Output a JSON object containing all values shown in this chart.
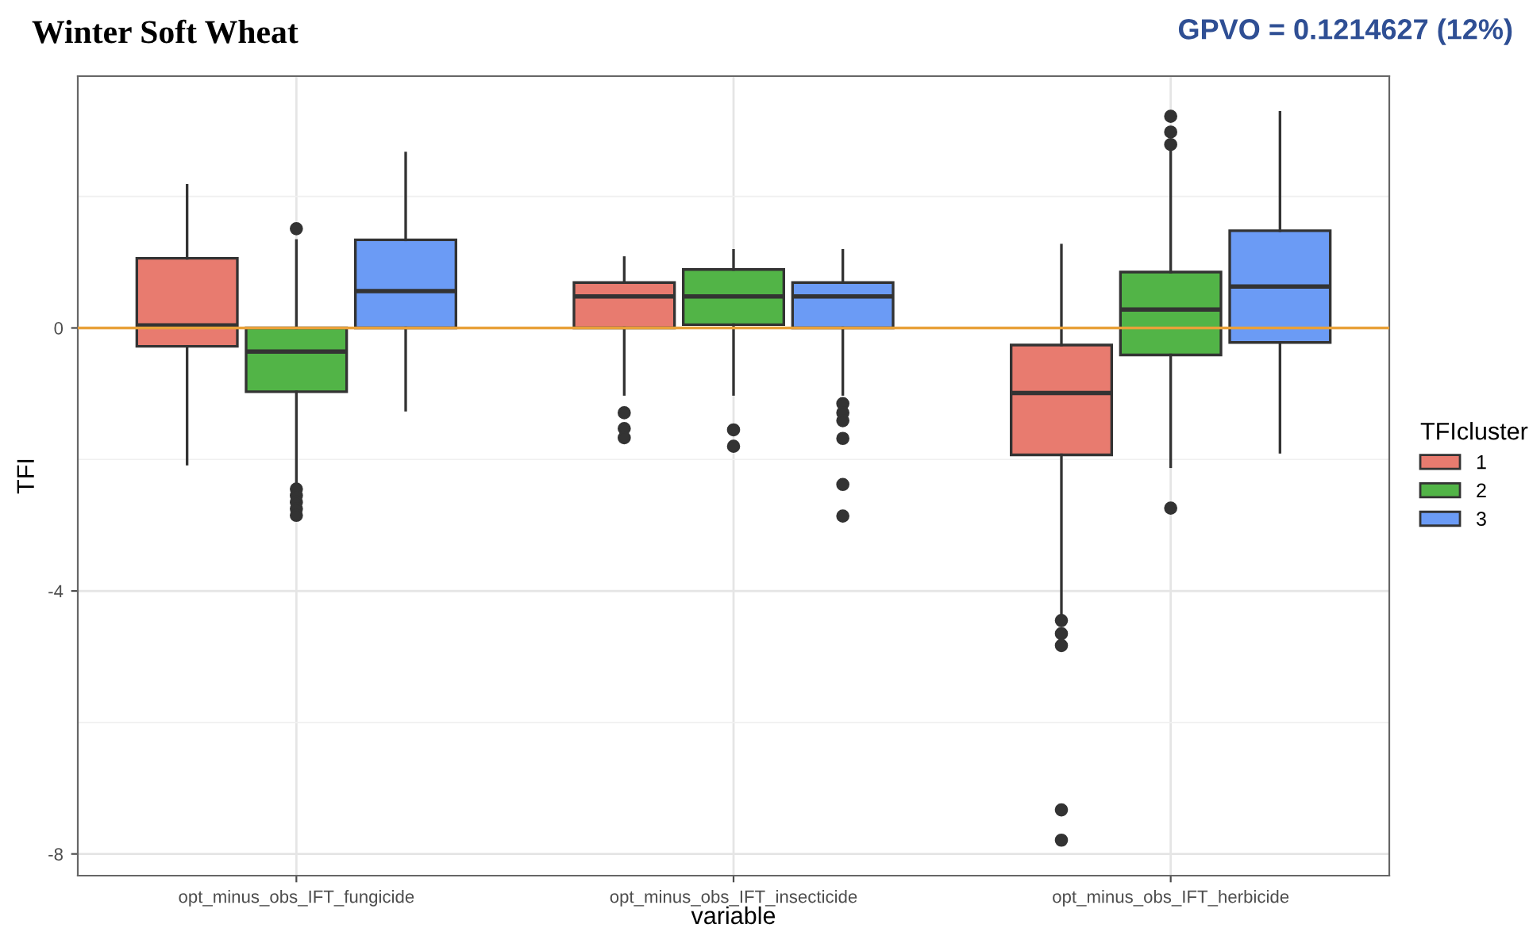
{
  "chart_data": {
    "type": "box",
    "title": "Winter Soft Wheat",
    "annotations": [
      "GPVO = 0.1214627 (12%)"
    ],
    "xlabel": "variable",
    "ylabel": "TFI",
    "legend_title": "TFIcluster",
    "categories": [
      "opt_minus_obs_IFT_fungicide",
      "opt_minus_obs_IFT_insecticide",
      "opt_minus_obs_IFT_herbicide"
    ],
    "series": [
      {
        "name": "1",
        "color": "#e87b6f",
        "boxes": [
          {
            "low": -2.07,
            "q1": -0.28,
            "median": 0.04,
            "q3": 1.06,
            "high": 2.17
          },
          {
            "low": -1.01,
            "q1": 0.0,
            "median": 0.48,
            "q3": 0.69,
            "high": 1.07,
            "outliers": [
              -1.29,
              -1.53,
              -1.67
            ]
          },
          {
            "low": -4.45,
            "q1": -1.93,
            "median": -0.99,
            "q3": -0.26,
            "high": 1.26,
            "outliers": [
              -4.45,
              -4.65,
              -4.83,
              -7.33,
              -7.79
            ]
          }
        ]
      },
      {
        "name": "2",
        "color": "#52b447",
        "boxes": [
          {
            "low": -2.42,
            "q1": -0.97,
            "median": -0.36,
            "q3": 0.0,
            "high": 1.33,
            "outliers": [
              1.51,
              -2.45,
              -2.55,
              -2.65,
              -2.75,
              -2.85
            ]
          },
          {
            "low": -1.01,
            "q1": 0.05,
            "median": 0.48,
            "q3": 0.89,
            "high": 1.18,
            "outliers": [
              -1.55,
              -1.8
            ]
          },
          {
            "low": -2.11,
            "q1": -0.41,
            "median": 0.28,
            "q3": 0.85,
            "high": 2.74,
            "outliers": [
              3.22,
              2.98,
              2.79,
              -2.74
            ]
          }
        ]
      },
      {
        "name": "3",
        "color": "#6b9bf5",
        "boxes": [
          {
            "low": -1.25,
            "q1": 0.0,
            "median": 0.56,
            "q3": 1.34,
            "high": 2.66
          },
          {
            "low": -1.01,
            "q1": 0.0,
            "median": 0.48,
            "q3": 0.69,
            "high": 1.18,
            "outliers": [
              -1.15,
              -1.29,
              -1.41,
              -1.68,
              -2.38,
              -2.86
            ]
          },
          {
            "low": -1.89,
            "q1": -0.22,
            "median": 0.63,
            "q3": 1.48,
            "high": 3.28
          }
        ]
      }
    ],
    "ylim": [
      -8.33,
      3.83
    ],
    "yticks": [
      -8,
      {
        "value": -6,
        "label": null
      },
      -4,
      {
        "value": -2,
        "label": null
      },
      0,
      {
        "value": 2,
        "label": null
      }
    ],
    "ref_lines": [
      {
        "axis": "y",
        "value": 0,
        "color": "#e8a13a"
      }
    ],
    "grid": true,
    "legend": "right"
  }
}
